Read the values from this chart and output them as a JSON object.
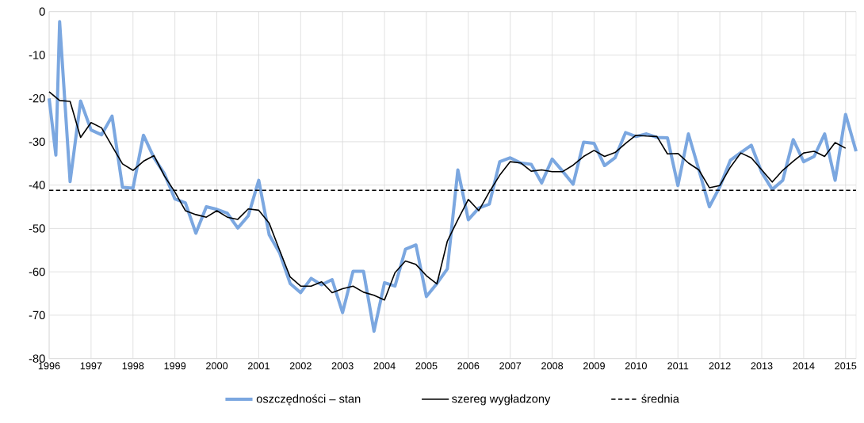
{
  "chart_data": {
    "type": "line",
    "xlim": [
      1996,
      2015.25
    ],
    "ylim": [
      -80,
      0
    ],
    "xticks": [
      1996,
      1997,
      1998,
      1999,
      2000,
      2001,
      2002,
      2003,
      2004,
      2005,
      2006,
      2007,
      2008,
      2009,
      2010,
      2011,
      2012,
      2013,
      2014,
      2015
    ],
    "yticks": [
      -80,
      -70,
      -60,
      -50,
      -40,
      -30,
      -20,
      -10,
      0
    ],
    "grid": true,
    "legend": "bottom",
    "marker": "none",
    "series": [
      {
        "name": "oszczędności – stan",
        "color": "#7ba7e0",
        "line_style": "solid",
        "x": [
          1996,
          1996.16,
          1996.25,
          1996.5,
          1996.75,
          1997,
          1997.25,
          1997.5,
          1997.75,
          1998,
          1998.25,
          1998.5,
          1998.75,
          1999,
          1999.25,
          1999.5,
          1999.75,
          2000,
          2000.25,
          2000.5,
          2000.75,
          2001,
          2001.25,
          2001.5,
          2001.75,
          2002,
          2002.25,
          2002.5,
          2002.75,
          2003,
          2003.25,
          2003.5,
          2003.75,
          2004,
          2004.25,
          2004.5,
          2004.75,
          2005,
          2005.25,
          2005.5,
          2005.75,
          2006,
          2006.25,
          2006.5,
          2006.75,
          2007,
          2007.25,
          2007.5,
          2007.75,
          2008,
          2008.25,
          2008.5,
          2008.75,
          2009,
          2009.25,
          2009.5,
          2009.75,
          2010,
          2010.25,
          2010.5,
          2010.75,
          2011,
          2011.25,
          2011.5,
          2011.75,
          2012,
          2012.25,
          2012.5,
          2012.75,
          2013,
          2013.25,
          2013.5,
          2013.75,
          2014,
          2014.25,
          2014.5,
          2014.75,
          2015,
          2015.25
        ],
        "values": [
          -20.0,
          -33.1,
          -2.3,
          -39.2,
          -20.6,
          -27.3,
          -28.4,
          -24.1,
          -40.5,
          -40.7,
          -28.5,
          -33.7,
          -37.4,
          -43.2,
          -44.1,
          -51.1,
          -45.0,
          -45.6,
          -46.5,
          -49.9,
          -47.1,
          -38.9,
          -51.5,
          -55.7,
          -62.7,
          -64.8,
          -61.5,
          -63.0,
          -61.8,
          -69.4,
          -59.9,
          -59.9,
          -73.7,
          -62.5,
          -63.3,
          -54.8,
          -53.8,
          -65.7,
          -62.7,
          -59.3,
          -36.5,
          -48.0,
          -45.3,
          -44.4,
          -34.6,
          -33.7,
          -34.9,
          -35.2,
          -39.5,
          -34.0,
          -36.8,
          -39.8,
          -30.1,
          -30.4,
          -35.5,
          -33.7,
          -27.9,
          -28.8,
          -28.2,
          -29.0,
          -29.1,
          -40.1,
          -28.2,
          -36.5,
          -45.0,
          -40.4,
          -34.3,
          -32.5,
          -30.8,
          -37.1,
          -41.0,
          -38.9,
          -29.5,
          -34.6,
          -33.4,
          -28.2,
          -38.9,
          -23.7,
          -32.2
        ]
      },
      {
        "name": "szereg wygładzony",
        "color": "#000000",
        "line_style": "solid",
        "x": [
          1996,
          1996.25,
          1996.5,
          1996.75,
          1997,
          1997.25,
          1997.5,
          1997.75,
          1998,
          1998.25,
          1998.5,
          1998.75,
          1999,
          1999.25,
          1999.5,
          1999.75,
          2000,
          2000.25,
          2000.5,
          2000.75,
          2001,
          2001.25,
          2001.5,
          2001.75,
          2002,
          2002.25,
          2002.5,
          2002.75,
          2003,
          2003.25,
          2003.5,
          2003.75,
          2004,
          2004.25,
          2004.5,
          2004.75,
          2005,
          2005.25,
          2005.5,
          2005.75,
          2006,
          2006.25,
          2006.5,
          2006.75,
          2007,
          2007.25,
          2007.5,
          2007.75,
          2008,
          2008.25,
          2008.5,
          2008.75,
          2009,
          2009.25,
          2009.5,
          2009.75,
          2010,
          2010.25,
          2010.5,
          2010.75,
          2011,
          2011.25,
          2011.5,
          2011.75,
          2012,
          2012.25,
          2012.5,
          2012.75,
          2013,
          2013.25,
          2013.5,
          2013.75,
          2014,
          2014.25,
          2014.5,
          2014.75,
          2015
        ],
        "values": [
          -18.5,
          -20.5,
          -20.7,
          -29.0,
          -25.6,
          -26.8,
          -31.0,
          -35.1,
          -36.6,
          -34.5,
          -33.2,
          -37.9,
          -41.6,
          -45.9,
          -46.8,
          -47.4,
          -45.9,
          -47.4,
          -47.9,
          -45.5,
          -45.8,
          -48.8,
          -55.1,
          -61.2,
          -63.3,
          -63.3,
          -62.3,
          -64.8,
          -63.9,
          -63.3,
          -64.7,
          -65.4,
          -66.5,
          -60.2,
          -57.5,
          -58.3,
          -60.9,
          -62.8,
          -52.9,
          -48.0,
          -43.3,
          -45.9,
          -41.6,
          -37.7,
          -34.6,
          -34.9,
          -36.8,
          -36.5,
          -36.9,
          -36.9,
          -35.4,
          -33.4,
          -32.0,
          -33.4,
          -32.5,
          -30.4,
          -28.5,
          -28.7,
          -28.8,
          -32.8,
          -32.7,
          -34.9,
          -36.5,
          -40.6,
          -40.1,
          -35.9,
          -32.6,
          -33.7,
          -36.5,
          -39.3,
          -36.6,
          -34.5,
          -32.6,
          -32.2,
          -33.4,
          -30.2,
          -31.5
        ]
      }
    ],
    "ref_lines": [
      {
        "axis": "y",
        "value": -41.2,
        "label": "średnia",
        "color": "#000000",
        "line_style": "dashed"
      }
    ]
  }
}
